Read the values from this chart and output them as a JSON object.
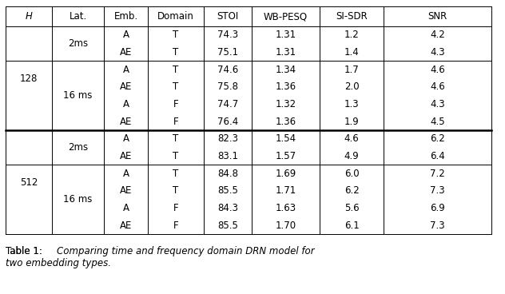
{
  "headers": [
    "H",
    "Lat.",
    "Emb.",
    "Domain",
    "STOI",
    "WB-PESQ",
    "SI-SDR",
    "SNR"
  ],
  "rows": [
    {
      "Emb": "A",
      "Domain": "T",
      "STOI": "74.3",
      "WBPESQ": "1.31",
      "SISDR": "1.2",
      "SNR": "4.2"
    },
    {
      "Emb": "AE",
      "Domain": "T",
      "STOI": "75.1",
      "WBPESQ": "1.31",
      "SISDR": "1.4",
      "SNR": "4.3"
    },
    {
      "Emb": "A",
      "Domain": "T",
      "STOI": "74.6",
      "WBPESQ": "1.34",
      "SISDR": "1.7",
      "SNR": "4.6"
    },
    {
      "Emb": "AE",
      "Domain": "T",
      "STOI": "75.8",
      "WBPESQ": "1.36",
      "SISDR": "2.0",
      "SNR": "4.6"
    },
    {
      "Emb": "A",
      "Domain": "F",
      "STOI": "74.7",
      "WBPESQ": "1.32",
      "SISDR": "1.3",
      "SNR": "4.3"
    },
    {
      "Emb": "AE",
      "Domain": "F",
      "STOI": "76.4",
      "WBPESQ": "1.36",
      "SISDR": "1.9",
      "SNR": "4.5"
    },
    {
      "Emb": "A",
      "Domain": "T",
      "STOI": "82.3",
      "WBPESQ": "1.54",
      "SISDR": "4.6",
      "SNR": "6.2"
    },
    {
      "Emb": "AE",
      "Domain": "T",
      "STOI": "83.1",
      "WBPESQ": "1.57",
      "SISDR": "4.9",
      "SNR": "6.4"
    },
    {
      "Emb": "A",
      "Domain": "T",
      "STOI": "84.8",
      "WBPESQ": "1.69",
      "SISDR": "6.0",
      "SNR": "7.2"
    },
    {
      "Emb": "AE",
      "Domain": "T",
      "STOI": "85.5",
      "WBPESQ": "1.71",
      "SISDR": "6.2",
      "SNR": "7.3"
    },
    {
      "Emb": "A",
      "Domain": "F",
      "STOI": "84.3",
      "WBPESQ": "1.63",
      "SISDR": "5.6",
      "SNR": "6.9"
    },
    {
      "Emb": "AE",
      "Domain": "F",
      "STOI": "85.5",
      "WBPESQ": "1.70",
      "SISDR": "6.1",
      "SNR": "7.3"
    }
  ],
  "bg_color": "#ffffff",
  "font_size": 8.5,
  "caption_fontsize": 8.5,
  "caption_bold": "Table 1: ",
  "caption_italic": "Comparing time and frequency domain DRN model for",
  "caption_italic2": "two embedding types."
}
